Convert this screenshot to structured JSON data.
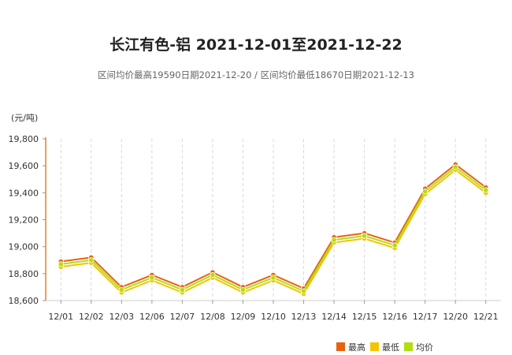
{
  "chart_data": {
    "type": "line",
    "title": "长江有色-铝 2021-12-01至2021-12-22",
    "subtitle": "区间均价最高19590日期2021-12-20 / 区间均价最低18670日期2021-12-13",
    "ylabel": "(元/吨)",
    "ylim": [
      18600,
      19800
    ],
    "yticks": [
      18600,
      18800,
      19000,
      19200,
      19400,
      19600,
      19800
    ],
    "ytick_labels": [
      "18,600",
      "18,800",
      "19,000",
      "19,200",
      "19,400",
      "19,600",
      "19,800"
    ],
    "categories": [
      "12/01",
      "12/02",
      "12/03",
      "12/06",
      "12/07",
      "12/08",
      "12/09",
      "12/10",
      "12/13",
      "12/14",
      "12/15",
      "12/16",
      "12/17",
      "12/20",
      "12/21"
    ],
    "series": [
      {
        "name": "最高",
        "color": "#e8620f",
        "values": [
          18890,
          18920,
          18700,
          18790,
          18700,
          18810,
          18700,
          18790,
          18690,
          19070,
          19100,
          19030,
          19430,
          19610,
          19440
        ]
      },
      {
        "name": "最低",
        "color": "#f2c500",
        "values": [
          18850,
          18880,
          18660,
          18750,
          18660,
          18770,
          18660,
          18750,
          18650,
          19030,
          19060,
          18990,
          19390,
          19570,
          19400
        ]
      },
      {
        "name": "均价",
        "color": "#b4dc12",
        "values": [
          18870,
          18900,
          18680,
          18770,
          18680,
          18790,
          18680,
          18770,
          18670,
          19050,
          19080,
          19010,
          19410,
          19590,
          19420
        ]
      }
    ],
    "grid": "vertical-dashed",
    "legend": "bottom-right"
  }
}
